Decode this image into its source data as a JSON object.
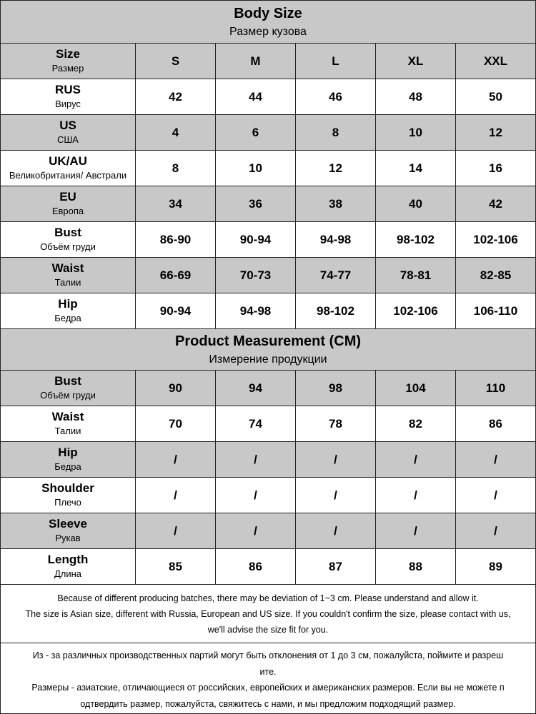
{
  "body_size": {
    "title": "Body Size",
    "subtitle": "Размер кузова",
    "header": {
      "label": "Size",
      "sublabel": "Размер",
      "sizes": [
        "S",
        "M",
        "L",
        "XL",
        "XXL"
      ]
    },
    "rows": [
      {
        "label": "RUS",
        "sublabel": "Вирус",
        "values": [
          42,
          44,
          46,
          48,
          50
        ]
      },
      {
        "label": "US",
        "sublabel": "США",
        "values": [
          4,
          6,
          8,
          10,
          12
        ]
      },
      {
        "label": "UK/AU",
        "sublabel": "Великобритания/ Австрали",
        "values": [
          8,
          10,
          12,
          14,
          16
        ]
      },
      {
        "label": "EU",
        "sublabel": "Европа",
        "values": [
          34,
          36,
          38,
          40,
          42
        ]
      },
      {
        "label": "Bust",
        "sublabel": "Объём груди",
        "values": [
          "86-90",
          "90-94",
          "94-98",
          "98-102",
          "102-106"
        ]
      },
      {
        "label": "Waist",
        "sublabel": "Талии",
        "values": [
          "66-69",
          "70-73",
          "74-77",
          "78-81",
          "82-85"
        ]
      },
      {
        "label": "Hip",
        "sublabel": "Бедра",
        "values": [
          "90-94",
          "94-98",
          "98-102",
          "102-106",
          "106-110"
        ]
      }
    ]
  },
  "product": {
    "title": "Product Measurement (CM)",
    "subtitle": "Измерение продукции",
    "rows": [
      {
        "label": "Bust",
        "sublabel": "Объём груди",
        "values": [
          90,
          94,
          98,
          104,
          110
        ]
      },
      {
        "label": "Waist",
        "sublabel": "Талии",
        "values": [
          70,
          74,
          78,
          82,
          86
        ]
      },
      {
        "label": "Hip",
        "sublabel": "Бедра",
        "values": [
          "/",
          "/",
          "/",
          "/",
          "/"
        ]
      },
      {
        "label": "Shoulder",
        "sublabel": "Плечо",
        "values": [
          "/",
          "/",
          "/",
          "/",
          "/"
        ]
      },
      {
        "label": "Sleeve",
        "sublabel": "Рукав",
        "values": [
          "/",
          "/",
          "/",
          "/",
          "/"
        ]
      },
      {
        "label": "Length",
        "sublabel": "Длина",
        "values": [
          85,
          86,
          87,
          88,
          89
        ]
      }
    ]
  },
  "notes": {
    "english": [
      "Because of different producing batches, there may be deviation of 1~3 cm. Please understand and allow it.",
      "The size is Asian size, different with Russia, European and US size. If you couldn't confirm the size, please contact with us,",
      "we'll advise the size fit for you."
    ],
    "russian": [
      "Из - за различных производственных партий могут быть отклонения от 1 до 3 см, пожалуйста, поймите и разреш",
      "ите.",
      "Размеры - азиатские, отличающиеся от российских, европейских и американских размеров. Если вы не можете п",
      "одтвердить размер, пожалуйста, свяжитесь с нами, и мы предложим подходящий размер."
    ]
  }
}
